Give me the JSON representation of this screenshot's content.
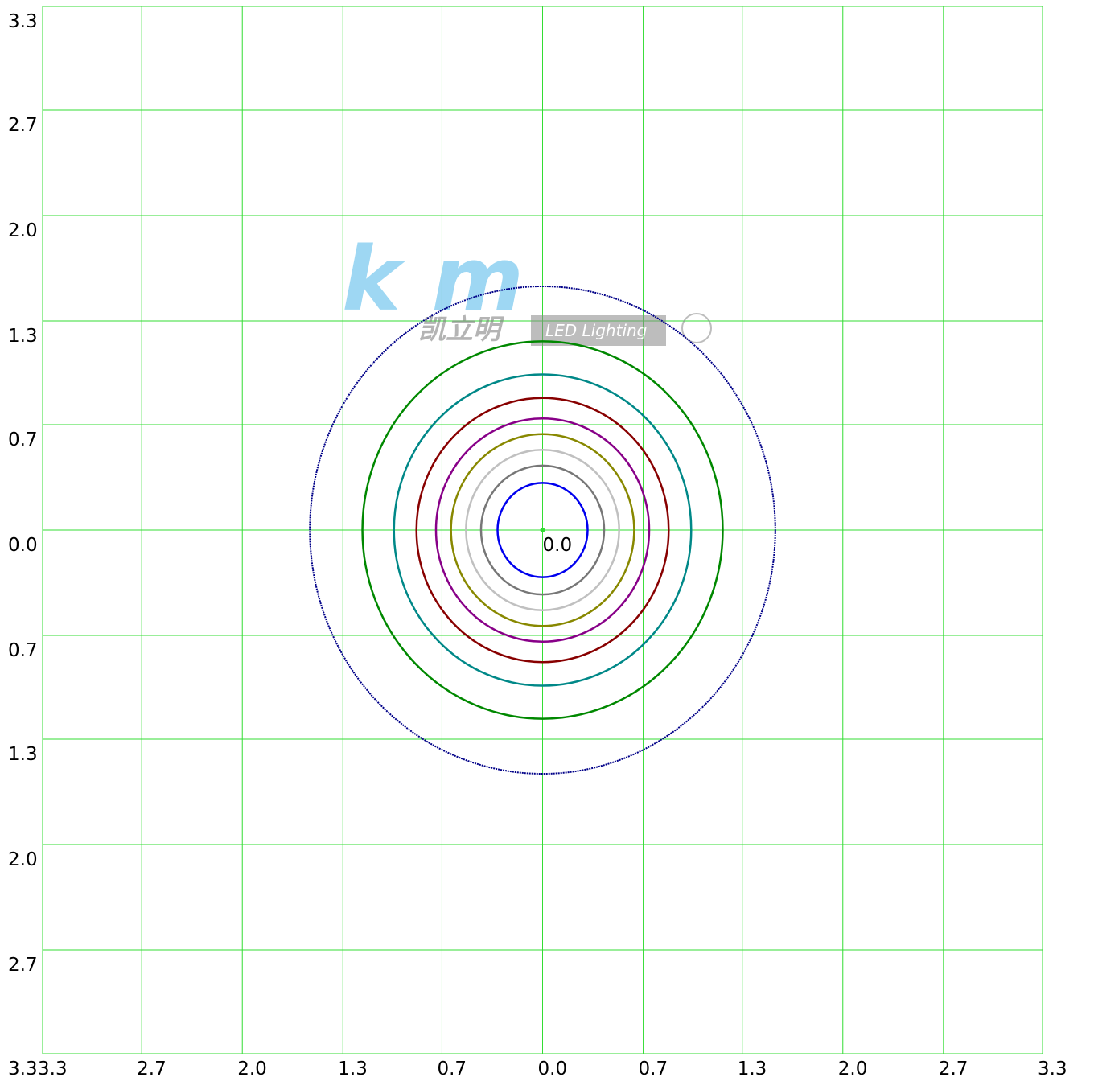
{
  "chart_data": {
    "type": "contour",
    "xlim": [
      -3.33,
      3.33
    ],
    "ylim": [
      -3.33,
      3.33
    ],
    "xticks": [
      {
        "value": -3.33,
        "label": "3.3"
      },
      {
        "value": -2.67,
        "label": "2.7"
      },
      {
        "value": -2,
        "label": "2.0"
      },
      {
        "value": -1.33,
        "label": "1.3"
      },
      {
        "value": -0.67,
        "label": "0.7"
      },
      {
        "value": 0,
        "label": "0.0"
      },
      {
        "value": 0.67,
        "label": "0.7"
      },
      {
        "value": 1.33,
        "label": "1.3"
      },
      {
        "value": 2,
        "label": "2.0"
      },
      {
        "value": 2.67,
        "label": "2.7"
      },
      {
        "value": 3.33,
        "label": "3.3"
      }
    ],
    "yticks": [
      {
        "value": 3.33,
        "label": "3.3"
      },
      {
        "value": 2.67,
        "label": "2.7"
      },
      {
        "value": 2,
        "label": "2.0"
      },
      {
        "value": 1.33,
        "label": "1.3"
      },
      {
        "value": 0.67,
        "label": "0.7"
      },
      {
        "value": 0,
        "label": "0.0"
      },
      {
        "value": -0.67,
        "label": "0.7"
      },
      {
        "value": -1.33,
        "label": "1.3"
      },
      {
        "value": -2,
        "label": "2.0"
      },
      {
        "value": -2.67,
        "label": "2.7"
      },
      {
        "value": -3.33,
        "label": "3.3"
      }
    ],
    "grid": true,
    "grid_color": "#33dd33",
    "center_label": "0.0",
    "contours": [
      {
        "color": "#0000ee",
        "radius": 0.3
      },
      {
        "color": "#777777",
        "radius": 0.41
      },
      {
        "color": "#c0c0c0",
        "radius": 0.51
      },
      {
        "color": "#888800",
        "radius": 0.61
      },
      {
        "color": "#880088",
        "radius": 0.71
      },
      {
        "color": "#880000",
        "radius": 0.84
      },
      {
        "color": "#008888",
        "radius": 0.99
      },
      {
        "color": "#008800",
        "radius": 1.2
      },
      {
        "color": "#000088",
        "radius": 1.55
      }
    ],
    "watermark": {
      "brand": "凯立明",
      "tagline": "LED Lighting"
    }
  }
}
